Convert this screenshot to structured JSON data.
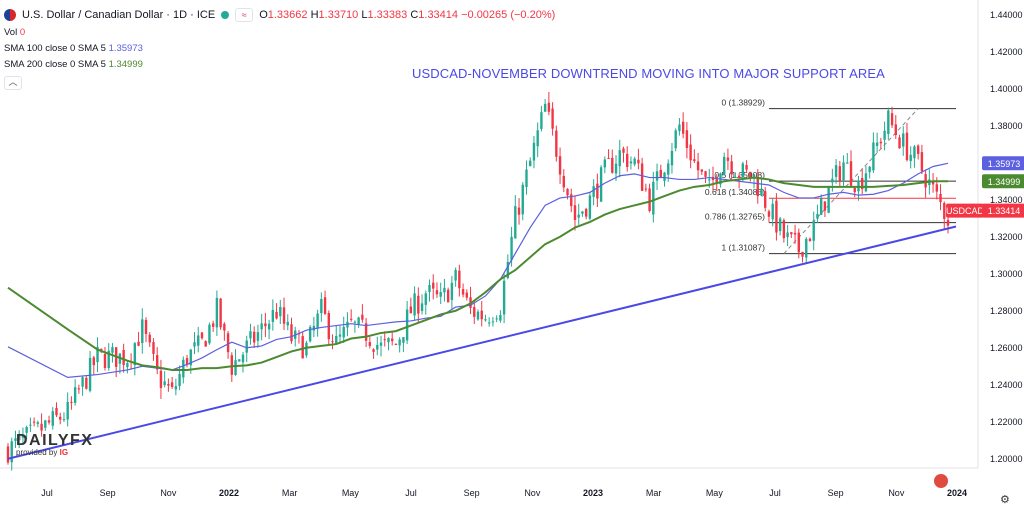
{
  "header": {
    "symbol_title": "U.S. Dollar / Canadian Dollar · 1D · ICE",
    "ohlc": {
      "open_label": "O",
      "open": "1.33662",
      "high_label": "H",
      "high": "1.33710",
      "low_label": "L",
      "low": "1.33383",
      "close_label": "C",
      "close": "1.33414",
      "change": "−0.00265 (−0.20%)"
    },
    "vol_label": "Vol",
    "vol_value": "0",
    "sma100_label": "SMA 100 close 0 SMA 5",
    "sma100_value": "1.35973",
    "sma200_label": "SMA 200 close 0 SMA 5",
    "sma200_value": "1.34999"
  },
  "annotation_title": "USDCAD-NOVEMBER DOWNTREND MOVING INTO MAJOR SUPPORT AREA",
  "logo": {
    "main": "DAILYFX",
    "sub_prefix": "provided by",
    "sub_brand": "IG"
  },
  "colors": {
    "up": "#22ab94",
    "down": "#f23645",
    "sma100": "#5b5fe0",
    "sma200": "#4c8a30",
    "trendline": "#4a49e6",
    "fib_line": "#333333",
    "price_badge": "#f23645"
  },
  "chart_data": {
    "type": "candlestick",
    "x_ticks": [
      "Jul",
      "Sep",
      "Nov",
      "2022",
      "Mar",
      "May",
      "Jul",
      "Sep",
      "Nov",
      "2023",
      "Mar",
      "May",
      "Jul",
      "Sep",
      "Nov",
      "2024"
    ],
    "y_ticks": [
      "1.44000",
      "1.42000",
      "1.40000",
      "1.38000",
      "1.36000",
      "1.34000",
      "1.32000",
      "1.30000",
      "1.28000",
      "1.26000",
      "1.24000",
      "1.22000",
      "1.20000"
    ],
    "ylim": [
      1.195,
      1.448
    ],
    "price_path": [
      [
        0,
        1.205
      ],
      [
        4,
        1.225
      ],
      [
        6,
        1.255
      ],
      [
        8,
        1.255
      ],
      [
        9,
        1.27
      ],
      [
        10,
        1.245
      ],
      [
        11,
        1.235
      ],
      [
        12,
        1.255
      ],
      [
        13,
        1.262
      ],
      [
        14,
        1.28
      ],
      [
        15,
        1.25
      ],
      [
        16,
        1.26
      ],
      [
        17,
        1.27
      ],
      [
        18,
        1.28
      ],
      [
        19,
        1.265
      ],
      [
        20,
        1.26
      ],
      [
        21,
        1.28
      ],
      [
        22,
        1.262
      ],
      [
        23,
        1.272
      ],
      [
        24,
        1.268
      ],
      [
        25,
        1.26
      ],
      [
        26,
        1.262
      ],
      [
        27,
        1.28
      ],
      [
        28,
        1.29
      ],
      [
        29,
        1.285
      ],
      [
        30,
        1.297
      ],
      [
        31,
        1.28
      ],
      [
        32,
        1.277
      ],
      [
        33,
        1.283
      ],
      [
        34,
        1.33
      ],
      [
        35,
        1.36
      ],
      [
        36,
        1.39
      ],
      [
        37,
        1.36
      ],
      [
        38,
        1.33
      ],
      [
        39,
        1.34
      ],
      [
        40,
        1.355
      ],
      [
        41,
        1.365
      ],
      [
        42,
        1.36
      ],
      [
        43,
        1.34
      ],
      [
        44,
        1.36
      ],
      [
        45,
        1.38
      ],
      [
        46,
        1.36
      ],
      [
        47,
        1.345
      ],
      [
        48,
        1.365
      ],
      [
        49,
        1.355
      ],
      [
        50,
        1.352
      ],
      [
        51,
        1.335
      ],
      [
        52,
        1.32
      ],
      [
        53,
        1.313
      ],
      [
        54,
        1.325
      ],
      [
        55,
        1.345
      ],
      [
        56,
        1.36
      ],
      [
        57,
        1.348
      ],
      [
        58,
        1.365
      ],
      [
        59,
        1.383
      ],
      [
        60,
        1.37
      ],
      [
        61,
        1.36
      ],
      [
        62,
        1.345
      ],
      [
        63,
        1.33
      ]
    ],
    "sma100": [
      [
        0,
        1.2605
      ],
      [
        4,
        1.244
      ],
      [
        6,
        1.2455
      ],
      [
        8,
        1.248
      ],
      [
        9,
        1.25
      ],
      [
        10,
        1.249
      ],
      [
        11,
        1.248
      ],
      [
        12,
        1.251
      ],
      [
        13,
        1.2545
      ],
      [
        14,
        1.259
      ],
      [
        15,
        1.263
      ],
      [
        16,
        1.26
      ],
      [
        17,
        1.261
      ],
      [
        18,
        1.2645
      ],
      [
        19,
        1.266
      ],
      [
        20,
        1.2695
      ],
      [
        21,
        1.271
      ],
      [
        22,
        1.272
      ],
      [
        23,
        1.273
      ],
      [
        24,
        1.272
      ],
      [
        25,
        1.273
      ],
      [
        26,
        1.274
      ],
      [
        27,
        1.2745
      ],
      [
        28,
        1.276
      ],
      [
        29,
        1.277
      ],
      [
        30,
        1.282
      ],
      [
        31,
        1.283
      ],
      [
        32,
        1.288
      ],
      [
        33,
        1.297
      ],
      [
        34,
        1.311
      ],
      [
        35,
        1.325
      ],
      [
        36,
        1.337
      ],
      [
        37,
        1.341
      ],
      [
        38,
        1.342
      ],
      [
        39,
        1.344
      ],
      [
        40,
        1.349
      ],
      [
        41,
        1.353
      ],
      [
        42,
        1.354
      ],
      [
        43,
        1.352
      ],
      [
        44,
        1.352
      ],
      [
        45,
        1.351
      ],
      [
        46,
        1.351
      ],
      [
        47,
        1.352
      ],
      [
        48,
        1.351
      ],
      [
        49,
        1.35
      ],
      [
        50,
        1.349
      ],
      [
        51,
        1.348
      ],
      [
        52,
        1.344
      ],
      [
        53,
        1.341
      ],
      [
        54,
        1.341
      ],
      [
        55,
        1.343
      ],
      [
        56,
        1.344
      ],
      [
        57,
        1.3425
      ],
      [
        58,
        1.343
      ],
      [
        59,
        1.345
      ],
      [
        60,
        1.349
      ],
      [
        61,
        1.354
      ],
      [
        62,
        1.358
      ],
      [
        63,
        1.3597
      ]
    ],
    "sma200": [
      [
        0,
        1.2925
      ],
      [
        4,
        1.27
      ],
      [
        6,
        1.259
      ],
      [
        8,
        1.253
      ],
      [
        9,
        1.2505
      ],
      [
        10,
        1.2495
      ],
      [
        11,
        1.248
      ],
      [
        12,
        1.248
      ],
      [
        13,
        1.249
      ],
      [
        14,
        1.249
      ],
      [
        15,
        1.25
      ],
      [
        16,
        1.2505
      ],
      [
        17,
        1.252
      ],
      [
        18,
        1.255
      ],
      [
        19,
        1.258
      ],
      [
        20,
        1.26
      ],
      [
        21,
        1.261
      ],
      [
        22,
        1.262
      ],
      [
        23,
        1.265
      ],
      [
        24,
        1.266
      ],
      [
        25,
        1.268
      ],
      [
        26,
        1.269
      ],
      [
        27,
        1.272
      ],
      [
        28,
        1.275
      ],
      [
        29,
        1.278
      ],
      [
        30,
        1.28
      ],
      [
        31,
        1.284
      ],
      [
        32,
        1.29
      ],
      [
        33,
        1.297
      ],
      [
        34,
        1.302
      ],
      [
        35,
        1.309
      ],
      [
        36,
        1.316
      ],
      [
        37,
        1.32
      ],
      [
        38,
        1.325
      ],
      [
        39,
        1.328
      ],
      [
        40,
        1.332
      ],
      [
        41,
        1.335
      ],
      [
        42,
        1.337
      ],
      [
        43,
        1.339
      ],
      [
        44,
        1.342
      ],
      [
        45,
        1.345
      ],
      [
        46,
        1.347
      ],
      [
        47,
        1.348
      ],
      [
        48,
        1.35
      ],
      [
        49,
        1.351
      ],
      [
        50,
        1.352
      ],
      [
        51,
        1.351
      ],
      [
        52,
        1.349
      ],
      [
        53,
        1.348
      ],
      [
        54,
        1.347
      ],
      [
        55,
        1.347
      ],
      [
        56,
        1.347
      ],
      [
        57,
        1.347
      ],
      [
        58,
        1.347
      ],
      [
        59,
        1.3475
      ],
      [
        60,
        1.348
      ],
      [
        61,
        1.349
      ],
      [
        62,
        1.35
      ],
      [
        63,
        1.35
      ]
    ],
    "trendline": {
      "from": [
        0,
        1.2
      ],
      "to": [
        63,
        1.325
      ]
    },
    "fib_levels": [
      {
        "label": "0 (1.38929)",
        "value": 1.38929
      },
      {
        "label": "0.5 (1.35008)",
        "value": 1.35008
      },
      {
        "label": "0.618 (1.34083)",
        "value": 1.34083
      },
      {
        "label": "0.786 (1.32765)",
        "value": 1.32765
      },
      {
        "label": "1 (1.31087)",
        "value": 1.31087
      }
    ],
    "fib_range": [
      51,
      63
    ],
    "fib_diagonal": {
      "from": [
        52,
        1.3109
      ],
      "to": [
        61,
        1.3893
      ]
    },
    "price_labels": [
      {
        "text": "1.35973",
        "value": 1.35973,
        "bg": "#5b5fe0"
      },
      {
        "text": "1.34999",
        "value": 1.34999,
        "bg": "#4c8a30"
      },
      {
        "text": "USDCAD",
        "value": 1.33414,
        "bg": "#f23645"
      },
      {
        "text": "1.33414",
        "value": 1.33414,
        "bg": "#f23645"
      }
    ]
  }
}
